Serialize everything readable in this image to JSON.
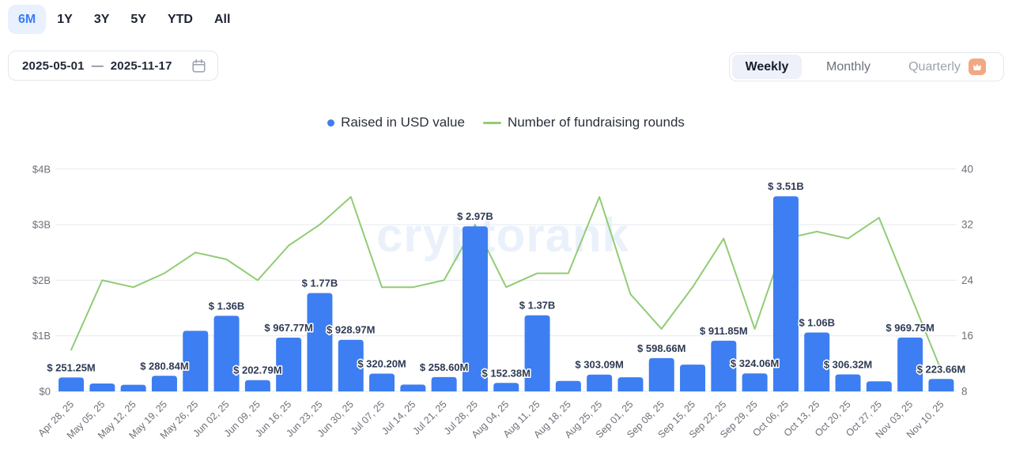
{
  "period_tabs": {
    "options": [
      "6M",
      "1Y",
      "3Y",
      "5Y",
      "YTD",
      "All"
    ],
    "selected": "6M"
  },
  "date_range": {
    "start": "2025-05-01",
    "separator": "—",
    "end": "2025-11-17"
  },
  "interval_toggle": {
    "options": [
      "Weekly",
      "Monthly",
      "Quarterly"
    ],
    "selected": "Weekly",
    "premium_option": "Quarterly"
  },
  "legend": {
    "items": [
      {
        "label": "Raised in USD value",
        "marker": "dot",
        "color": "#3d7ef2"
      },
      {
        "label": "Number of fundraising rounds",
        "marker": "line",
        "color": "#91cc75"
      }
    ]
  },
  "watermark": "cryptorank",
  "colors": {
    "bar": "#3d7ef2",
    "line": "#91cc75",
    "accent_blue": "#3d7ef2",
    "grid": "#e6e9ef",
    "axis_text": "#6e7079",
    "bar_label": "#2e3a54",
    "watermark": "#eaf1fb",
    "premium_badge": "#f2a883"
  },
  "chart_data": {
    "type": "combo",
    "categories": [
      "Apr 28, 25",
      "May 05, 25",
      "May 12, 25",
      "May 19, 25",
      "May 26, 25",
      "Jun 02, 25",
      "Jun 09, 25",
      "Jun 16, 25",
      "Jun 23, 25",
      "Jun 30, 25",
      "Jul 07, 25",
      "Jul 14, 25",
      "Jul 21, 25",
      "Jul 28, 25",
      "Aug 04, 25",
      "Aug 11, 25",
      "Aug 18, 25",
      "Aug 25, 25",
      "Sep 01, 25",
      "Sep 08, 25",
      "Sep 15, 25",
      "Sep 22, 25",
      "Sep 29, 25",
      "Oct 06, 25",
      "Oct 13, 25",
      "Oct 20, 25",
      "Oct 27, 25",
      "Nov 03, 25",
      "Nov 10, 25"
    ],
    "series": [
      {
        "name": "Raised in USD value",
        "type": "bar",
        "axis": "left",
        "unit": "USD millions",
        "values": [
          251.25,
          142,
          120,
          280.84,
          1090,
          1360,
          202.79,
          967.77,
          1770,
          928.97,
          320.2,
          123,
          258.6,
          2970,
          152.38,
          1370,
          188,
          303.09,
          255,
          598.66,
          482,
          911.85,
          324.06,
          3510,
          1060,
          306.32,
          181,
          969.75,
          223.66
        ],
        "labels": [
          "$ 251.25M",
          null,
          null,
          "$ 280.84M",
          null,
          "$ 1.36B",
          "$ 202.79M",
          "$ 967.77M",
          "$ 1.77B",
          "$ 928.97M",
          "$ 320.20M",
          null,
          "$ 258.60M",
          "$ 2.97B",
          "$ 152.38M",
          "$ 1.37B",
          null,
          "$ 303.09M",
          null,
          "$ 598.66M",
          null,
          "$ 911.85M",
          "$ 324.06M",
          "$ 3.51B",
          "$ 1.06B",
          "$ 306.32M",
          null,
          "$ 969.75M",
          "$ 223.66M"
        ]
      },
      {
        "name": "Number of fundraising rounds",
        "type": "line",
        "axis": "right",
        "values": [
          14,
          24,
          23,
          25,
          28,
          27,
          24,
          29,
          32,
          36,
          23,
          23,
          24,
          32,
          23,
          25,
          25,
          36,
          22,
          17,
          23,
          30,
          17,
          30,
          31,
          30,
          33,
          22,
          11
        ]
      }
    ],
    "left_axis": {
      "ticks": [
        "$4B",
        "$3B",
        "$2B",
        "$1B",
        "$0"
      ],
      "min": 0,
      "max": 4000,
      "unit": "USD"
    },
    "right_axis": {
      "ticks": [
        "40",
        "32",
        "24",
        "16",
        "8"
      ],
      "min": 8,
      "max": 40
    },
    "grid": true,
    "legend_position": "top-center",
    "x_label_rotation": 45
  }
}
